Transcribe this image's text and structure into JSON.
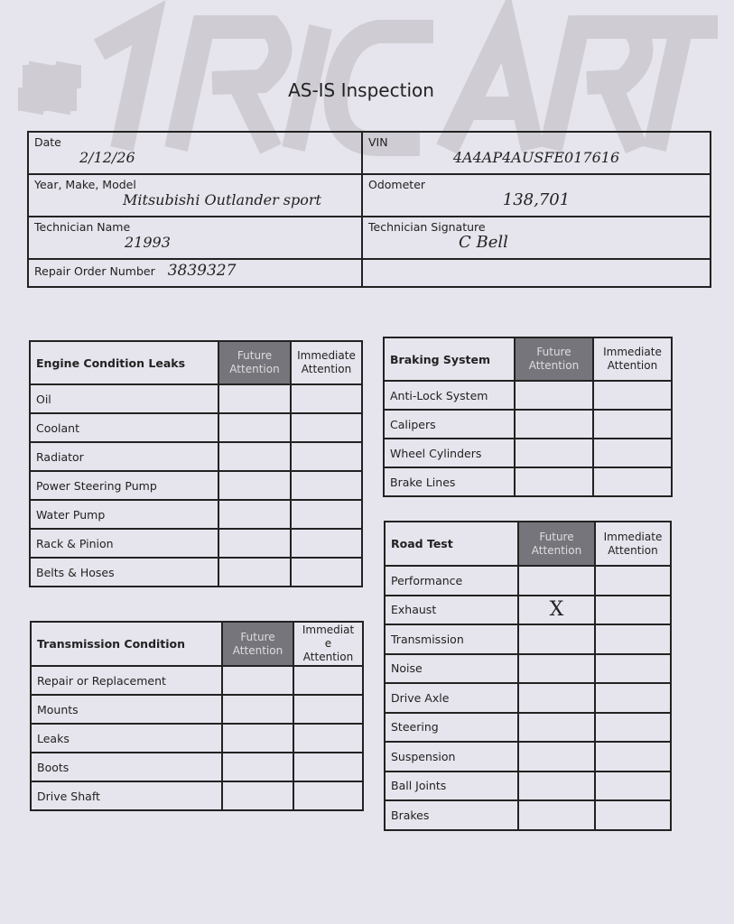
{
  "watermark": "#1RICART",
  "title": "AS-IS Inspection",
  "header": {
    "date": {
      "label": "Date",
      "value": "2/12/26"
    },
    "vin": {
      "label": "VIN",
      "value": "4A4AP4AUSFE017616"
    },
    "ymm": {
      "label": "Year, Make, Model",
      "value": "Mitsubishi Outlander sport"
    },
    "odometer": {
      "label": "Odometer",
      "value": "138,701"
    },
    "tech_name": {
      "label": "Technician Name",
      "value": "21993"
    },
    "tech_sig": {
      "label": "Technician Signature",
      "value": "C Bell"
    },
    "ro": {
      "label": "Repair Order Number",
      "value": "3839327"
    }
  },
  "columns": {
    "future": "Future Attention",
    "immediate": "Immediate Attention"
  },
  "sections": [
    {
      "id": "engine",
      "title": "Engine Condition Leaks",
      "items": [
        {
          "label": "Oil"
        },
        {
          "label": "Coolant"
        },
        {
          "label": "Radiator"
        },
        {
          "label": "Power Steering Pump"
        },
        {
          "label": "Water Pump"
        },
        {
          "label": "Rack & Pinion"
        },
        {
          "label": "Belts & Hoses"
        }
      ]
    },
    {
      "id": "transmission",
      "title": "Transmission Condition",
      "items": [
        {
          "label": "Repair or Replacement"
        },
        {
          "label": "Mounts"
        },
        {
          "label": "Leaks"
        },
        {
          "label": "Boots"
        },
        {
          "label": "Drive Shaft"
        }
      ]
    },
    {
      "id": "braking",
      "title": "Braking System",
      "items": [
        {
          "label": "Anti-Lock System"
        },
        {
          "label": "Calipers"
        },
        {
          "label": "Wheel Cylinders"
        },
        {
          "label": "Brake Lines"
        }
      ]
    },
    {
      "id": "road",
      "title": "Road Test",
      "items": [
        {
          "label": "Performance"
        },
        {
          "label": "Exhaust",
          "future": "X"
        },
        {
          "label": "Transmission"
        },
        {
          "label": "Noise"
        },
        {
          "label": "Drive Axle"
        },
        {
          "label": "Steering"
        },
        {
          "label": "Suspension"
        },
        {
          "label": "Ball Joints"
        },
        {
          "label": "Brakes"
        }
      ]
    }
  ]
}
